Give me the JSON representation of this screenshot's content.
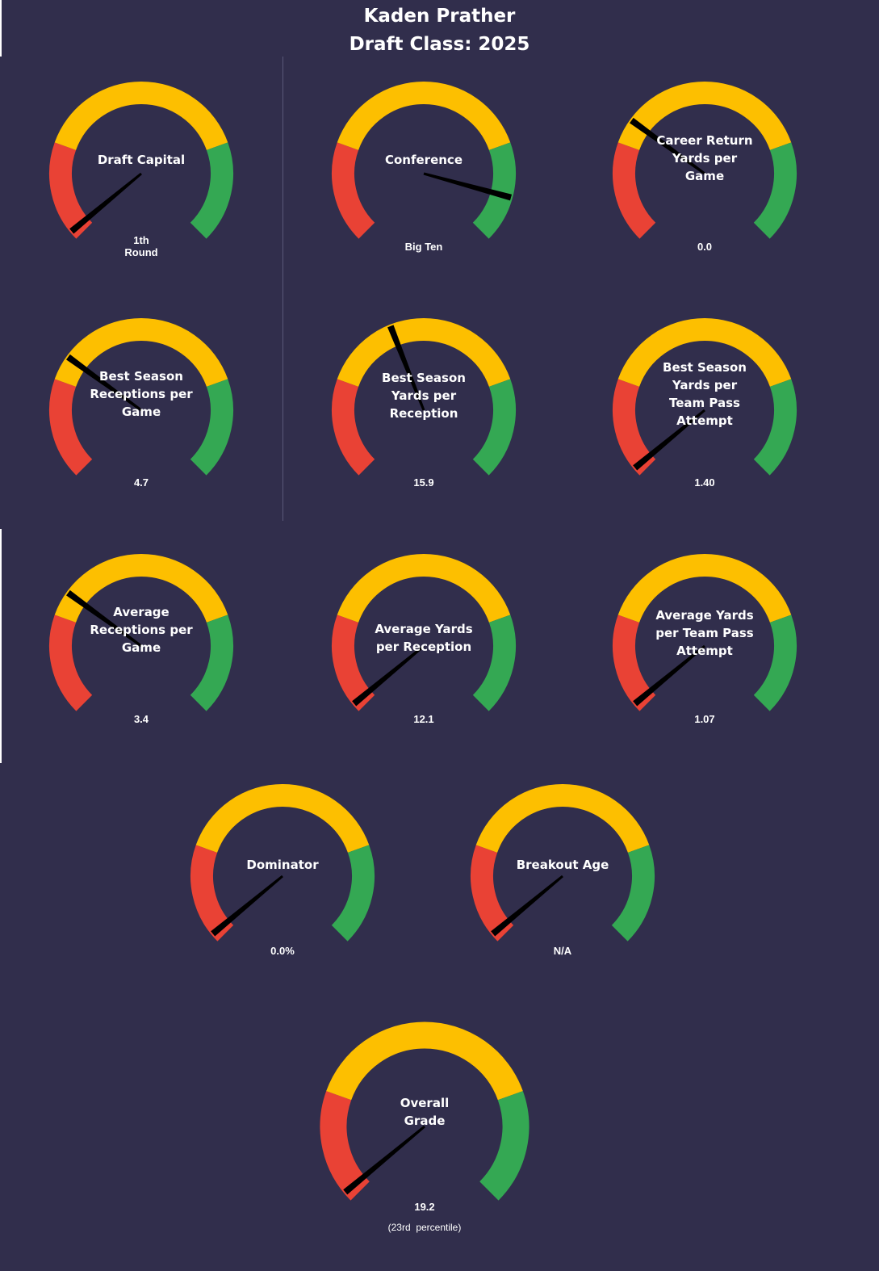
{
  "header": {
    "player_name": "Kaden Prather",
    "draft_class": "Draft Class: 2025"
  },
  "colors": {
    "background": "#312e4c",
    "low": "#e94235",
    "mid": "#fdbf00",
    "high": "#34a853",
    "needle": "#000000"
  },
  "chart_data": [
    {
      "type": "gauge",
      "title": "Draft Capital",
      "value_text": "1th\nRound",
      "needle_fraction": 0.02,
      "bands": [
        "low",
        "mid",
        "high"
      ]
    },
    {
      "type": "gauge",
      "title": "Conference",
      "value_text": "Big Ten",
      "needle_fraction": 0.89,
      "bands": [
        "low",
        "mid",
        "high"
      ]
    },
    {
      "type": "gauge",
      "title": "Career Return\nYards per\nGame",
      "value_text": "0.0",
      "needle_fraction": 0.3,
      "bands": [
        "low",
        "mid",
        "high"
      ]
    },
    {
      "type": "gauge",
      "title": "Best Season\nReceptions per\nGame",
      "value_text": "4.7",
      "needle_fraction": 0.3,
      "bands": [
        "low",
        "mid",
        "high"
      ]
    },
    {
      "type": "gauge",
      "title": "Best Season\nYards per\nReception",
      "value_text": "15.9",
      "needle_fraction": 0.42,
      "bands": [
        "low",
        "mid",
        "high"
      ]
    },
    {
      "type": "gauge",
      "title": "Best Season\nYards per\nTeam Pass\nAttempt",
      "value_text": "1.40",
      "needle_fraction": 0.02,
      "bands": [
        "low",
        "mid",
        "high"
      ]
    },
    {
      "type": "gauge",
      "title": "Average\nReceptions per\nGame",
      "value_text": "3.4",
      "needle_fraction": 0.3,
      "bands": [
        "low",
        "mid",
        "high"
      ]
    },
    {
      "type": "gauge",
      "title": "Average Yards\nper Reception",
      "value_text": "12.1",
      "needle_fraction": 0.02,
      "bands": [
        "low",
        "mid",
        "high"
      ]
    },
    {
      "type": "gauge",
      "title": "Average Yards\nper Team Pass\nAttempt",
      "value_text": "1.07",
      "needle_fraction": 0.02,
      "bands": [
        "low",
        "mid",
        "high"
      ]
    },
    {
      "type": "gauge",
      "title": "Dominator",
      "value_text": "0.0%",
      "needle_fraction": 0.02,
      "bands": [
        "low",
        "mid",
        "high"
      ]
    },
    {
      "type": "gauge",
      "title": "Breakout Age",
      "value_text": "N/A",
      "needle_fraction": 0.02,
      "bands": [
        "low",
        "mid",
        "high"
      ]
    },
    {
      "type": "gauge",
      "title": "Overall\nGrade",
      "value_text": "19.2",
      "subtext": "(23rd  percentile)",
      "needle_fraction": 0.02,
      "bands": [
        "low",
        "mid",
        "high"
      ]
    }
  ]
}
